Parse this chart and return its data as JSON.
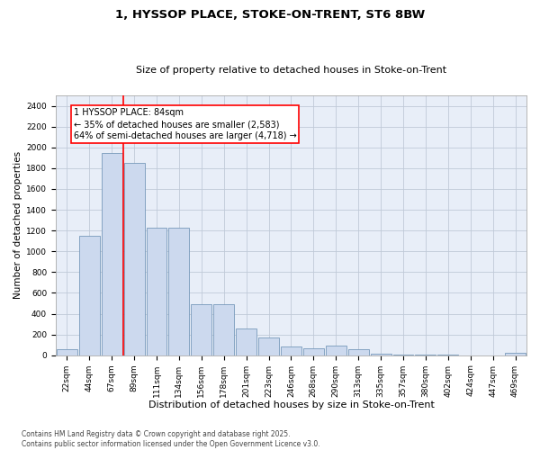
{
  "title1": "1, HYSSOP PLACE, STOKE-ON-TRENT, ST6 8BW",
  "title2": "Size of property relative to detached houses in Stoke-on-Trent",
  "xlabel": "Distribution of detached houses by size in Stoke-on-Trent",
  "ylabel": "Number of detached properties",
  "categories": [
    "22sqm",
    "44sqm",
    "67sqm",
    "89sqm",
    "111sqm",
    "134sqm",
    "156sqm",
    "178sqm",
    "201sqm",
    "223sqm",
    "246sqm",
    "268sqm",
    "290sqm",
    "313sqm",
    "335sqm",
    "357sqm",
    "380sqm",
    "402sqm",
    "424sqm",
    "447sqm",
    "469sqm"
  ],
  "values": [
    60,
    1150,
    1950,
    1850,
    1230,
    1230,
    490,
    490,
    260,
    170,
    80,
    70,
    90,
    55,
    15,
    10,
    5,
    5,
    2,
    2,
    25
  ],
  "bar_color": "#ccd9ee",
  "bar_edge_color": "#7799bb",
  "vline_color": "red",
  "vline_pos": 2.5,
  "annotation_text": "1 HYSSOP PLACE: 84sqm\n← 35% of detached houses are smaller (2,583)\n64% of semi-detached houses are larger (4,718) →",
  "annotation_box_color": "red",
  "bg_color": "#e8eef8",
  "grid_color": "#c0cad8",
  "ylim": [
    0,
    2500
  ],
  "yticks": [
    0,
    200,
    400,
    600,
    800,
    1000,
    1200,
    1400,
    1600,
    1800,
    2000,
    2200,
    2400
  ],
  "footnote": "Contains HM Land Registry data © Crown copyright and database right 2025.\nContains public sector information licensed under the Open Government Licence v3.0.",
  "title1_fontsize": 9.5,
  "title2_fontsize": 8,
  "xlabel_fontsize": 8,
  "ylabel_fontsize": 7.5,
  "tick_fontsize": 6.5,
  "annot_fontsize": 7,
  "footnote_fontsize": 5.5
}
